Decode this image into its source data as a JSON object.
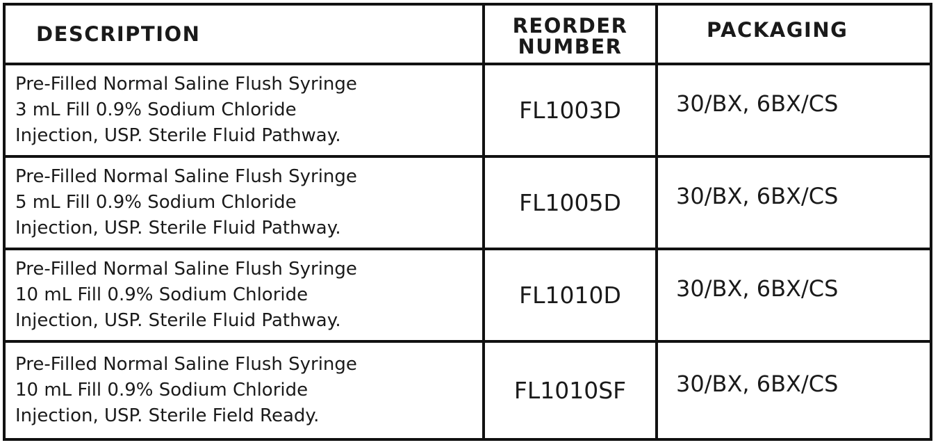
{
  "headers": {
    "description": "DESCRIPTION",
    "reorder_1": "REORDER",
    "reorder_2": "NUMBER",
    "packaging": "PACKAGING"
  },
  "rows": [
    {
      "desc": [
        "Pre-Filled Normal Saline Flush Syringe",
        "3 mL Fill 0.9% Sodium Chloride",
        "Injection, USP. Sterile Fluid Pathway."
      ],
      "code": "FL1003D",
      "packaging": "30/BX, 6BX/CS"
    },
    {
      "desc": [
        "Pre-Filled Normal Saline Flush Syringe",
        "5 mL Fill 0.9% Sodium Chloride",
        "Injection, USP. Sterile Fluid Pathway."
      ],
      "code": "FL1005D",
      "packaging": "30/BX, 6BX/CS"
    },
    {
      "desc": [
        "Pre-Filled Normal Saline Flush Syringe",
        "10 mL Fill 0.9% Sodium Chloride",
        "Injection, USP. Sterile Fluid Pathway."
      ],
      "code": "FL1010D",
      "packaging": "30/BX, 6BX/CS"
    },
    {
      "desc": [
        "Pre-Filled Normal Saline Flush Syringe",
        "10 mL Fill 0.9% Sodium Chloride",
        "Injection, USP. Sterile Field Ready."
      ],
      "code": "FL1010SF",
      "packaging": "30/BX, 6BX/CS"
    }
  ]
}
